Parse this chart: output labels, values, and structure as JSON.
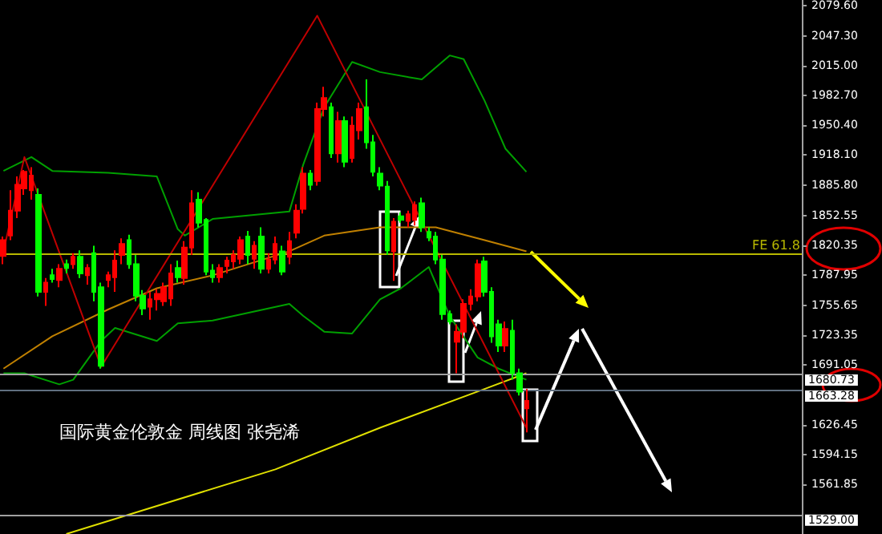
{
  "chart_data": {
    "type": "candlestick",
    "annotations": [
      "国际黄金伦敦金 周线图 张尧浠"
    ],
    "categories": [
      null,
      null,
      null,
      null,
      null,
      null,
      null,
      null,
      null,
      null,
      null,
      null,
      null,
      null,
      null,
      null,
      null,
      null,
      null,
      null,
      null,
      null,
      null,
      null,
      null,
      null,
      null,
      null,
      null,
      null,
      null,
      null,
      null,
      null,
      null,
      null,
      null,
      null,
      null,
      null,
      null,
      null,
      null,
      null,
      null,
      null,
      null,
      null,
      null,
      null,
      null,
      null,
      null,
      null,
      null,
      null,
      null,
      null,
      null,
      null,
      null,
      null,
      null,
      null,
      null,
      null,
      null,
      null,
      null,
      null,
      null,
      null,
      null,
      null,
      null,
      null,
      null,
      null,
      null,
      null,
      null,
      null,
      null,
      null,
      null,
      null,
      null,
      null,
      null,
      null,
      null,
      null,
      null,
      null,
      null,
      null,
      null,
      null,
      null,
      null,
      null,
      null,
      null,
      null,
      null,
      null,
      null,
      null,
      null,
      null,
      null,
      null,
      null,
      null,
      null
    ],
    "ylim": [
      1508,
      2086
    ],
    "yticks": [
      {
        "value": 2079.6,
        "label": "2079.60"
      },
      {
        "value": 2047.3,
        "label": "2047.30"
      },
      {
        "value": 2015,
        "label": "2015.00"
      },
      {
        "value": 1982.7,
        "label": "1982.70"
      },
      {
        "value": 1950.4,
        "label": "1950.40"
      },
      {
        "value": 1918.1,
        "label": "1918.10"
      },
      {
        "value": 1885.8,
        "label": "1885.80"
      },
      {
        "value": 1852.55,
        "label": "1852.55"
      },
      {
        "value": 1820.35,
        "label": "1820.35"
      },
      {
        "value": 1787.95,
        "label": "1787.95"
      },
      {
        "value": 1755.65,
        "label": "1755.65"
      },
      {
        "value": 1723.35,
        "label": "1723.35"
      },
      {
        "value": 1691.05,
        "label": "1691.05"
      },
      {
        "value": 1626.45,
        "label": "1626.45"
      },
      {
        "value": 1594.15,
        "label": "1594.15"
      },
      {
        "value": 1561.85,
        "label": "1561.85"
      }
    ],
    "tick_labels": "y",
    "grid": false,
    "ref_lines": [
      {
        "axis": "y",
        "value": 1812,
        "label": "FE 61.8",
        "color": "#b8b800"
      },
      {
        "axis": "y",
        "value": 1680.73,
        "label": "1680.73",
        "color": "#a0a0a0"
      },
      {
        "axis": "y",
        "value": 1663.28,
        "label": "1663.28",
        "color": "#607080"
      },
      {
        "axis": "y",
        "value": 1529,
        "label": "1529.00",
        "color": "#a0a0a0"
      }
    ],
    "series": [
      {
        "type": "line",
        "color": "#00a000",
        "values": [
          1901,
          null,
          null,
          null,
          1916,
          null,
          null,
          1901,
          null,
          null,
          null,
          null,
          null,
          null,
          null,
          1899,
          null,
          null,
          null,
          null,
          null,
          null,
          1895,
          null,
          null,
          1838,
          1831,
          null,
          null,
          null,
          1849,
          null,
          null,
          null,
          null,
          null,
          null,
          null,
          null,
          null,
          null,
          1857,
          null,
          1908,
          null,
          null,
          1970,
          null,
          null,
          null,
          2019,
          null,
          null,
          null,
          2008,
          null,
          null,
          null,
          null,
          null,
          2000,
          null,
          null,
          null,
          2026,
          null,
          2022,
          null,
          null,
          1977,
          null,
          null,
          1925,
          null,
          null,
          1900,
          null,
          null,
          null,
          null,
          null,
          null,
          null,
          null,
          null,
          null,
          null,
          null,
          null,
          null,
          null,
          null,
          null,
          null,
          null,
          null,
          null,
          null,
          null,
          null,
          null,
          null,
          null,
          null,
          null,
          null,
          null,
          null,
          null,
          null,
          null,
          null,
          null,
          null,
          null
        ]
      },
      {
        "type": "line",
        "color": "#00a000",
        "values": [
          1682,
          null,
          null,
          1682,
          null,
          null,
          null,
          null,
          1670,
          null,
          1675,
          null,
          null,
          null,
          1717,
          null,
          1731,
          null,
          null,
          null,
          null,
          null,
          1717,
          null,
          null,
          1736,
          null,
          null,
          null,
          null,
          1739,
          null,
          null,
          null,
          null,
          null,
          null,
          null,
          null,
          null,
          null,
          1757,
          null,
          1744,
          null,
          null,
          1727,
          null,
          null,
          null,
          1725,
          null,
          null,
          null,
          1762,
          null,
          null,
          1774,
          null,
          null,
          null,
          1797,
          null,
          null,
          1744,
          null,
          null,
          null,
          1699,
          null,
          null,
          1687,
          null,
          null,
          null,
          1675,
          null,
          null,
          null,
          null,
          null,
          null,
          null,
          null,
          null,
          null,
          null,
          null,
          null,
          null,
          null,
          null,
          null,
          null,
          null,
          null,
          null,
          null,
          null,
          null,
          null,
          null,
          null,
          null,
          null,
          null,
          null,
          null,
          null,
          null,
          null,
          null,
          null,
          null,
          null
        ]
      },
      {
        "type": "line",
        "color": "#c08000",
        "values": [
          1687,
          null,
          null,
          null,
          null,
          null,
          null,
          1722,
          null,
          null,
          null,
          null,
          null,
          null,
          null,
          1751,
          null,
          null,
          null,
          null,
          null,
          null,
          1774,
          null,
          null,
          null,
          null,
          null,
          null,
          null,
          1788,
          null,
          null,
          null,
          null,
          null,
          null,
          null,
          null,
          null,
          null,
          1814,
          null,
          null,
          null,
          null,
          1831,
          null,
          null,
          null,
          null,
          null,
          null,
          null,
          1840,
          null,
          null,
          null,
          null,
          null,
          null,
          null,
          1840,
          null,
          null,
          null,
          null,
          null,
          null,
          1826,
          null,
          null,
          null,
          null,
          null,
          1814,
          null,
          null,
          null,
          null,
          null,
          null,
          null,
          null,
          null,
          null,
          null,
          null,
          null,
          null,
          null,
          null,
          null,
          null,
          null,
          null,
          null,
          null,
          null,
          null,
          null,
          null,
          null,
          null,
          null,
          null,
          null,
          null,
          null,
          null,
          null,
          null,
          null,
          null,
          null
        ]
      },
      {
        "type": "line",
        "color": "#e0e000",
        "values": [
          null,
          null,
          null,
          null,
          null,
          null,
          null,
          null,
          null,
          1508,
          null,
          null,
          null,
          null,
          null,
          null,
          null,
          null,
          null,
          null,
          null,
          null,
          null,
          null,
          null,
          null,
          null,
          null,
          null,
          null,
          null,
          null,
          null,
          null,
          null,
          null,
          null,
          null,
          null,
          1578,
          null,
          null,
          null,
          null,
          null,
          null,
          null,
          null,
          null,
          null,
          null,
          null,
          null,
          null,
          1623,
          null,
          null,
          null,
          null,
          null,
          null,
          null,
          null,
          null,
          null,
          null,
          null,
          null,
          null,
          1665,
          null,
          null,
          null,
          null,
          null,
          1682,
          null,
          null,
          null,
          null,
          null,
          null,
          null,
          null,
          null,
          null,
          null,
          null,
          null,
          null,
          null,
          null,
          null,
          null,
          null,
          null,
          null,
          null,
          null,
          null,
          null,
          null,
          null,
          null,
          null,
          null,
          null,
          null,
          null,
          null,
          null,
          null,
          null,
          null,
          null
        ]
      },
      {
        "type": "line",
        "color": "#c00000",
        "values": [
          1814,
          null,
          null,
          1916,
          null,
          null,
          null,
          null,
          null,
          null,
          null,
          null,
          null,
          null,
          1689,
          null,
          null,
          null,
          null,
          null,
          null,
          null,
          null,
          null,
          null,
          null,
          null,
          null,
          null,
          null,
          null,
          null,
          null,
          null,
          null,
          null,
          null,
          null,
          null,
          null,
          null,
          null,
          null,
          null,
          null,
          2069,
          null,
          null,
          null,
          null,
          null,
          null,
          null,
          null,
          null,
          null,
          null,
          null,
          null,
          null,
          null,
          null,
          null,
          null,
          null,
          null,
          null,
          null,
          null,
          null,
          null,
          null,
          null,
          null,
          null,
          1623,
          null,
          null,
          null,
          null,
          null,
          null,
          null,
          null,
          null,
          null,
          null,
          null,
          null,
          null,
          null,
          null,
          null,
          null,
          null,
          null,
          null,
          null,
          null,
          null,
          null,
          null,
          null,
          null,
          null,
          null,
          null,
          null,
          null,
          null,
          null,
          null,
          null,
          null,
          null
        ]
      },
      {
        "ohlc": [
          [
            1809,
            1830,
            1800,
            1826
          ],
          [
            1831,
            1880,
            1826,
            1858
          ],
          [
            1858,
            1895,
            1850,
            1886
          ],
          [
            1882,
            1902,
            1875,
            1900
          ],
          [
            1880,
            1905,
            1870,
            1896
          ],
          [
            1875,
            1882,
            1765,
            1770
          ],
          [
            1770,
            1785,
            1755,
            1780
          ],
          [
            1788,
            1795,
            1780,
            1784
          ],
          [
            1783,
            1800,
            1775,
            1795
          ],
          [
            1800,
            1805,
            1790,
            1796
          ],
          [
            1800,
            1812,
            1795,
            1808
          ],
          [
            1808,
            1815,
            1785,
            1790
          ],
          [
            1788,
            1800,
            1778,
            1796
          ],
          [
            1812,
            1820,
            1760,
            1770
          ],
          [
            1775,
            1780,
            1687,
            1690
          ],
          [
            1783,
            1792,
            1775,
            1788
          ],
          [
            1786,
            1815,
            1770,
            1804
          ],
          [
            1810,
            1828,
            1800,
            1822
          ],
          [
            1826,
            1832,
            1795,
            1800
          ],
          [
            1800,
            1810,
            1760,
            1766
          ],
          [
            1766,
            1772,
            1745,
            1752
          ],
          [
            1754,
            1770,
            1740,
            1762
          ],
          [
            1762,
            1773,
            1750,
            1768
          ],
          [
            1760,
            1780,
            1755,
            1775
          ],
          [
            1763,
            1800,
            1755,
            1790
          ],
          [
            1796,
            1804,
            1780,
            1786
          ],
          [
            1785,
            1825,
            1778,
            1818
          ],
          [
            1818,
            1880,
            1810,
            1866
          ],
          [
            1870,
            1878,
            1840,
            1845
          ],
          [
            1848,
            1850,
            1788,
            1792
          ],
          [
            1793,
            1800,
            1780,
            1786
          ],
          [
            1786,
            1800,
            1780,
            1796
          ],
          [
            1798,
            1808,
            1790,
            1804
          ],
          [
            1803,
            1815,
            1795,
            1810
          ],
          [
            1806,
            1830,
            1800,
            1826
          ],
          [
            1830,
            1836,
            1800,
            1810
          ],
          [
            1806,
            1825,
            1795,
            1820
          ],
          [
            1830,
            1840,
            1790,
            1795
          ],
          [
            1795,
            1812,
            1790,
            1805
          ],
          [
            1805,
            1830,
            1800,
            1822
          ],
          [
            1814,
            1820,
            1788,
            1792
          ],
          [
            1808,
            1835,
            1800,
            1825
          ],
          [
            1834,
            1865,
            1828,
            1858
          ],
          [
            1860,
            1905,
            1855,
            1898
          ],
          [
            1898,
            1902,
            1880,
            1886
          ],
          [
            1890,
            1975,
            1885,
            1968
          ],
          [
            1968,
            1992,
            1960,
            1980
          ],
          [
            1970,
            1975,
            1915,
            1920
          ],
          [
            1920,
            1965,
            1910,
            1955
          ],
          [
            1955,
            1960,
            1905,
            1911
          ],
          [
            1915,
            1960,
            1910,
            1950
          ],
          [
            1945,
            1975,
            1935,
            1968
          ],
          [
            1970,
            2000,
            1925,
            1932
          ],
          [
            1932,
            1940,
            1895,
            1900
          ],
          [
            1898,
            1905,
            1880,
            1885
          ],
          [
            1884,
            1890,
            1810,
            1815
          ],
          [
            1814,
            1850,
            1782,
            1846
          ],
          [
            1852,
            1856,
            1845,
            1848
          ],
          [
            1847,
            1858,
            1840,
            1854
          ],
          [
            1848,
            1868,
            1842,
            1864
          ],
          [
            1866,
            1872,
            1835,
            1840
          ],
          [
            1835,
            1840,
            1825,
            1829
          ],
          [
            1830,
            1835,
            1800,
            1805
          ],
          [
            1805,
            1810,
            1740,
            1746
          ],
          [
            1746,
            1750,
            1735,
            1738
          ],
          [
            1716,
            1735,
            1682,
            1727
          ],
          [
            1727,
            1762,
            1720,
            1757
          ],
          [
            1757,
            1773,
            1750,
            1765
          ],
          [
            1765,
            1805,
            1760,
            1800
          ],
          [
            1803,
            1808,
            1765,
            1770
          ],
          [
            1770,
            1775,
            1715,
            1722
          ],
          [
            1735,
            1740,
            1705,
            1712
          ],
          [
            1712,
            1738,
            1705,
            1730
          ],
          [
            1728,
            1740,
            1675,
            1682
          ],
          [
            1682,
            1687,
            1658,
            1662
          ],
          [
            1644,
            1665,
            1618,
            1652
          ],
          null,
          null,
          null,
          null,
          null,
          null,
          null,
          null,
          null,
          null,
          null,
          null,
          null,
          null,
          null,
          null,
          null,
          null,
          null,
          null,
          null,
          null,
          null,
          null,
          null,
          null,
          null,
          null,
          null,
          null,
          null,
          null,
          null,
          null,
          null,
          null,
          null,
          null,
          null
        ],
        "colors": [
          "#ff0000",
          "#ff0000",
          "#ff0000",
          "#ff0000",
          "#ff0000",
          "#00ff00",
          "#ff0000",
          "#00ff00",
          "#ff0000",
          "#00ff00",
          "#ff0000",
          "#00ff00",
          "#ff0000",
          "#00ff00",
          "#00ff00",
          "#ff0000",
          "#ff0000",
          "#ff0000",
          "#00ff00",
          "#00ff00",
          "#00ff00",
          "#ff0000",
          "#ff0000",
          "#ff0000",
          "#ff0000",
          "#00ff00",
          "#ff0000",
          "#ff0000",
          "#00ff00",
          "#00ff00",
          "#00ff00",
          "#ff0000",
          "#ff0000",
          "#ff0000",
          "#ff0000",
          "#00ff00",
          "#ff0000",
          "#00ff00",
          "#ff0000",
          "#ff0000",
          "#00ff00",
          "#ff0000",
          "#ff0000",
          "#ff0000",
          "#00ff00",
          "#ff0000",
          "#ff0000",
          "#00ff00",
          "#ff0000",
          "#00ff00",
          "#ff0000",
          "#ff0000",
          "#00ff00",
          "#00ff00",
          "#00ff00",
          "#00ff00",
          "#ff0000",
          "#00ff00",
          "#ff0000",
          "#ff0000",
          "#00ff00",
          "#00ff00",
          "#00ff00",
          "#00ff00",
          "#00ff00",
          "#ff0000",
          "#ff0000",
          "#ff0000",
          "#ff0000",
          "#00ff00",
          "#00ff00",
          "#00ff00",
          "#ff0000",
          "#00ff00",
          "#00ff00",
          "#ff0000",
          null,
          null,
          null,
          null,
          null,
          null,
          null,
          null,
          null,
          null,
          null,
          null,
          null,
          null,
          null,
          null,
          null,
          null,
          null,
          null,
          null,
          null,
          null,
          null,
          null,
          null,
          null,
          null,
          null,
          null,
          null,
          null,
          null,
          null,
          null,
          null,
          null,
          null,
          null
        ]
      }
    ]
  }
}
